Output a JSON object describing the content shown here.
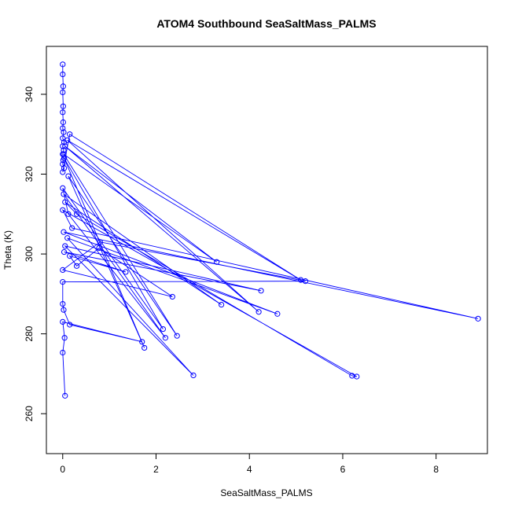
{
  "chart_data": {
    "type": "line",
    "title": "ATOM4 Southbound SeaSaltMass_PALMS",
    "xlabel": "SeaSaltMass_PALMS",
    "ylabel": "Theta (K)",
    "xlim": [
      -0.35,
      9.1
    ],
    "ylim": [
      250,
      352
    ],
    "xticks": [
      0,
      2,
      4,
      6,
      8
    ],
    "yticks": [
      260,
      280,
      300,
      320,
      340
    ],
    "grid": false,
    "legend": "none",
    "colors": {
      "series": "#0000ff",
      "axis": "#000000"
    },
    "series": [
      {
        "marker": "open-circle",
        "points": [
          [
            0.0,
            347.5
          ],
          [
            0.0,
            345
          ],
          [
            0.01,
            342
          ],
          [
            0.0,
            340.5
          ],
          [
            0.01,
            337
          ],
          [
            0.0,
            335.5
          ],
          [
            0.01,
            333
          ],
          [
            0.0,
            331.5
          ],
          [
            0.02,
            330.5
          ],
          [
            0.0,
            329
          ],
          [
            0.03,
            328
          ],
          [
            0.0,
            327
          ],
          [
            0.02,
            326
          ],
          [
            0.0,
            325
          ],
          [
            0.01,
            323.5
          ],
          [
            0.0,
            322.5
          ],
          [
            0.03,
            321.5
          ],
          [
            0.0,
            320.5
          ],
          [
            0.15,
            330.0
          ],
          [
            5.1,
            293.5
          ],
          [
            0.1,
            328.5
          ],
          [
            4.2,
            285.5
          ],
          [
            0.05,
            327.0
          ],
          [
            3.3,
            298.0
          ],
          [
            0.02,
            325.0
          ],
          [
            2.45,
            279.5
          ],
          [
            0.12,
            319.5
          ],
          [
            1.75,
            276.5
          ],
          [
            0.03,
            324.0
          ],
          [
            2.15,
            281.2
          ],
          [
            0.0,
            316.5
          ],
          [
            0.12,
            310.0
          ],
          [
            2.2,
            279.0
          ],
          [
            0.02,
            315.0
          ],
          [
            3.4,
            287.3
          ],
          [
            0.05,
            313.0
          ],
          [
            0.3,
            310.0
          ],
          [
            6.2,
            269.5
          ],
          [
            6.3,
            269.3
          ],
          [
            0.0,
            311.0
          ],
          [
            0.2,
            306.5
          ],
          [
            8.9,
            283.8
          ],
          [
            0.02,
            305.5
          ],
          [
            4.6,
            285.0
          ],
          [
            0.1,
            304.0
          ],
          [
            2.8,
            269.6
          ],
          [
            0.05,
            302.0
          ],
          [
            4.25,
            290.8
          ],
          [
            0.03,
            300.5
          ],
          [
            1.35,
            295.5
          ],
          [
            0.15,
            299.5
          ],
          [
            0.3,
            297.0
          ],
          [
            0.78,
            301.5
          ],
          [
            2.35,
            289.3
          ],
          [
            0.0,
            296.0
          ],
          [
            0.8,
            303.0
          ],
          [
            5.2,
            293.2
          ],
          [
            0.0,
            293.0
          ],
          [
            0.0,
            287.5
          ],
          [
            0.02,
            286.0
          ],
          [
            0.15,
            282.3
          ],
          [
            1.7,
            278.0
          ],
          [
            0.0,
            283.0
          ],
          [
            0.04,
            279.0
          ],
          [
            0.0,
            275.3
          ],
          [
            0.05,
            264.5
          ]
        ]
      }
    ]
  }
}
